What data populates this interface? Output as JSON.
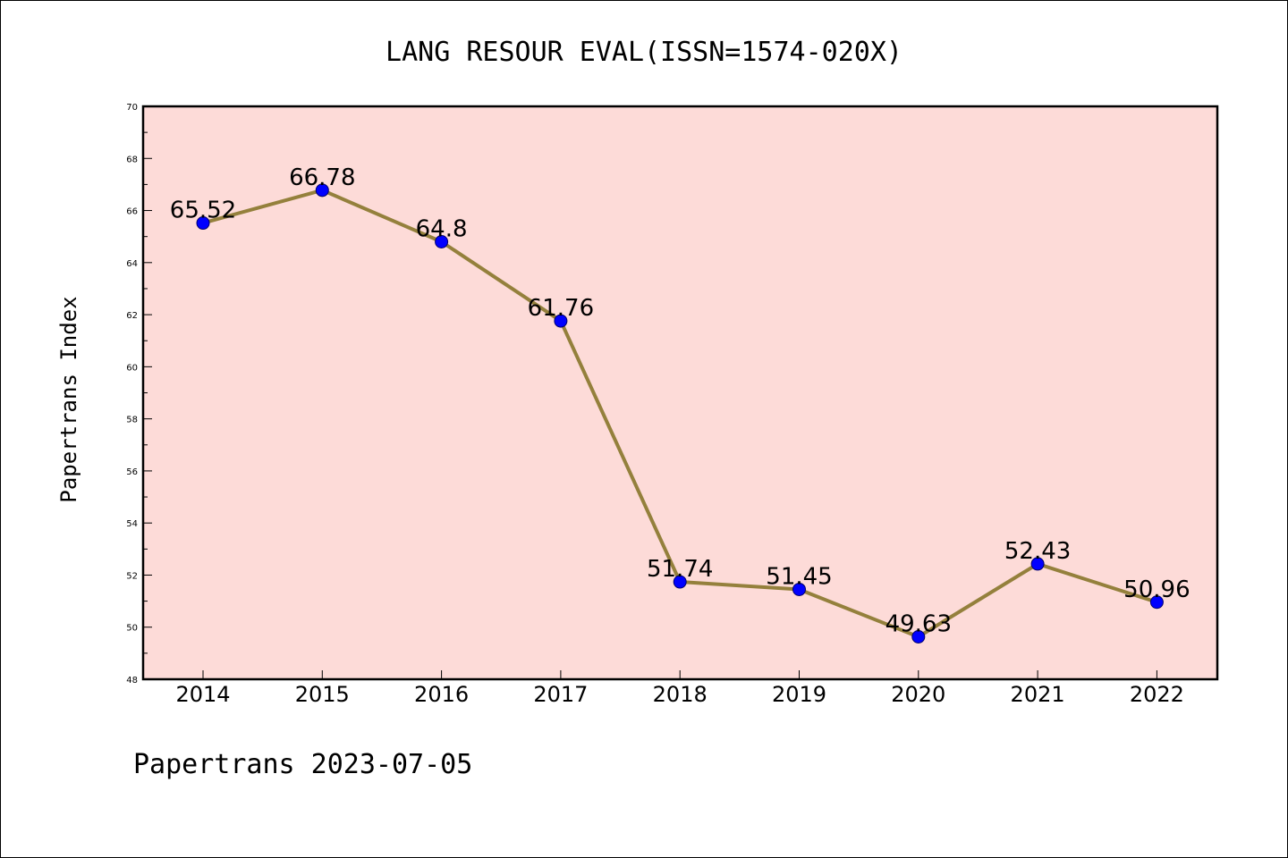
{
  "chart_data": {
    "type": "line",
    "title": "LANG RESOUR EVAL(ISSN=1574-020X)",
    "ylabel": "Papertrans Index",
    "xlabel": "",
    "footer": "Papertrans 2023-07-05",
    "x": [
      "2014",
      "2015",
      "2016",
      "2017",
      "2018",
      "2019",
      "2020",
      "2021",
      "2022"
    ],
    "values": [
      65.52,
      66.78,
      64.8,
      61.76,
      51.74,
      51.45,
      49.63,
      52.43,
      50.96
    ],
    "point_labels": [
      "65.52",
      "66.78",
      "64.8",
      "61.76",
      "51.74",
      "51.45",
      "49.63",
      "52.43",
      "50.96"
    ],
    "ylim": [
      48,
      70
    ],
    "yticks": [
      "48",
      "50",
      "52",
      "54",
      "56",
      "58",
      "60",
      "62",
      "64",
      "66",
      "68",
      "70"
    ],
    "grid": false,
    "legend": "none",
    "colors": {
      "plot_background": "#fddbd8",
      "line": "#94803c",
      "marker": "#0000ff",
      "marker_edge": "#00006b"
    }
  }
}
